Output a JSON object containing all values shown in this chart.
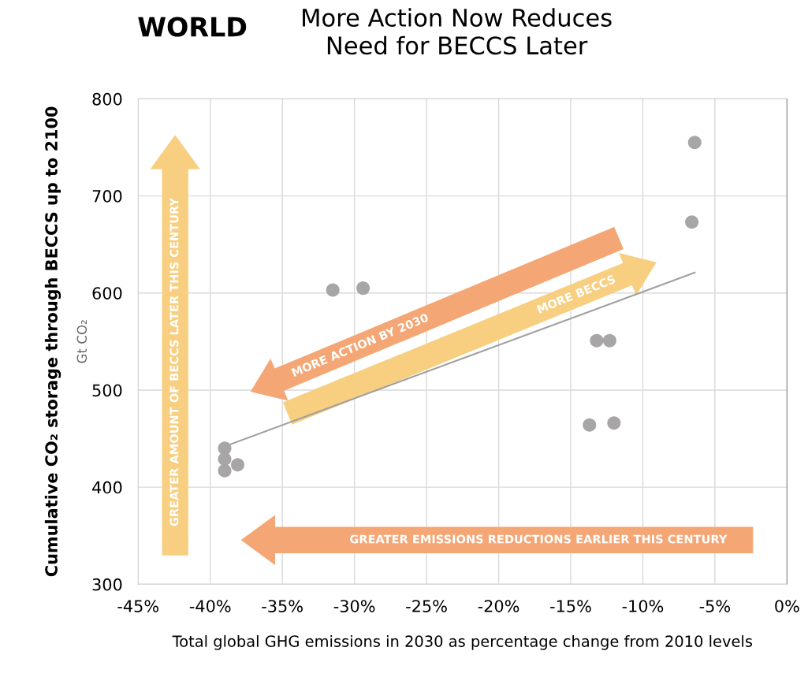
{
  "chart_data": {
    "type": "scatter",
    "title": "WORLD",
    "subtitle": "More Action Now Reduces\nNeed for BECCS Later",
    "xlabel": "Total global GHG emissions in 2030 as percentage change from 2010 levels",
    "ylabel": "Cumulative CO₂ storage through BECCS up to 2100",
    "annotations": [
      "GREATER AMOUNT OF BECCS LATER THIS CENTURY",
      "GREATER EMISSIONS REDUCTIONS EARLIER THIS CENTURY",
      "MORE ACTION BY 2030",
      "MORE BECCS",
      "Gt CO₂"
    ],
    "series": [
      {
        "color": "#a7a5a5",
        "marker": "circle",
        "x": [
          -39.0,
          -39.0,
          -39.0,
          -38.1,
          -31.5,
          -29.4,
          -13.2,
          -12.3,
          -13.7,
          -12.0,
          -6.6,
          -6.4
        ],
        "values": [
          440,
          429,
          417,
          423,
          603,
          605,
          551,
          551,
          464,
          466,
          673,
          755
        ]
      },
      {
        "type": "line",
        "color": "#a0a0a0",
        "marker": "none",
        "line_style": "solid",
        "x": [
          -39.0,
          -6.4
        ],
        "values": [
          442,
          621
        ]
      }
    ],
    "xlim": [
      -45,
      0
    ],
    "xticks": [
      {
        "value": -45,
        "label": "-45%"
      },
      {
        "value": -40,
        "label": "-40%"
      },
      {
        "value": -35,
        "label": "-35%"
      },
      {
        "value": -30,
        "label": "-30%"
      },
      {
        "value": -25,
        "label": "-25%"
      },
      {
        "value": -20,
        "label": "-20%"
      },
      {
        "value": -15,
        "label": "-15%"
      },
      {
        "value": -10,
        "label": "-10%"
      },
      {
        "value": -5,
        "label": "-5%"
      },
      {
        "value": 0,
        "label": "0%"
      }
    ],
    "ylim": [
      300,
      800
    ],
    "yticks": [
      300,
      400,
      500,
      600,
      700,
      800
    ],
    "grid": true,
    "legend": false
  }
}
